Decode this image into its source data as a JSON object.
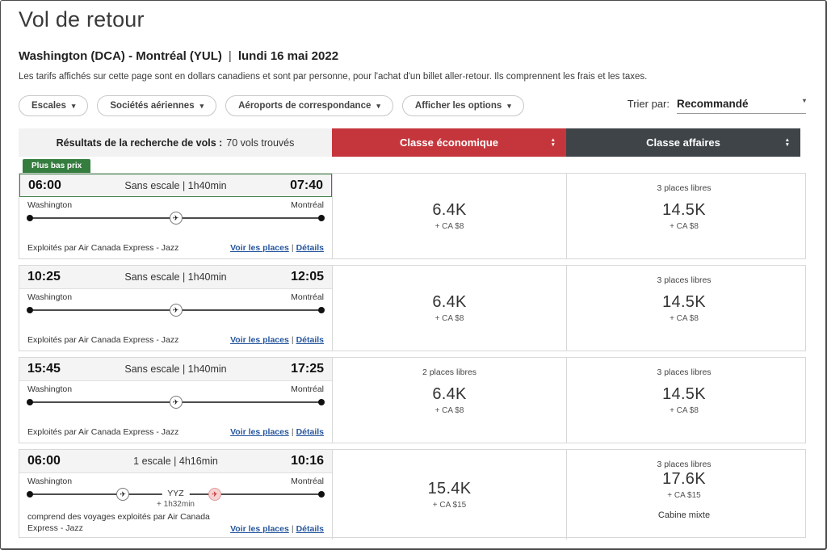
{
  "page": {
    "title": "Vol de retour",
    "route": "Washington (DCA) - Montréal (YUL)",
    "subtitle_divider": "|",
    "date": "lundi 16 mai 2022",
    "note": "Les tarifs affichés sur cette page sont en dollars canadiens et sont par personne, pour l'achat d'un billet aller-retour. Ils comprennent les frais et les taxes."
  },
  "filters": {
    "buttons": [
      {
        "label": "Escales"
      },
      {
        "label": "Sociétés aériennes"
      },
      {
        "label": "Aéroports de correspondance"
      },
      {
        "label": "Afficher les options"
      }
    ],
    "sort_label": "Trier par:",
    "sort_value": "Recommandé"
  },
  "results_header": {
    "results_label": "Résultats de la recherche de vols :",
    "results_count": "70 vols trouvés",
    "economy_label": "Classe économique",
    "business_label": "Classe affaires"
  },
  "badge": {
    "lowest_price": "Plus bas prix"
  },
  "flights": [
    {
      "departure_time": "06:00",
      "arrival_time": "07:40",
      "stops_duration": "Sans escale | 1h40min",
      "origin": "Washington",
      "destination": "Montréal",
      "operator": "Exploités par Air Canada Express - Jazz",
      "links": {
        "seats": "Voir les places",
        "divider": "|",
        "details": "Détails"
      },
      "economy": {
        "seats_left": "",
        "price": "6.4K",
        "note": "+ CA $8"
      },
      "business": {
        "seats_left": "3 places libres",
        "price": "14.5K",
        "note": "+ CA $8"
      }
    },
    {
      "departure_time": "10:25",
      "arrival_time": "12:05",
      "stops_duration": "Sans escale | 1h40min",
      "origin": "Washington",
      "destination": "Montréal",
      "operator": "Exploités par Air Canada Express - Jazz",
      "links": {
        "seats": "Voir les places",
        "divider": "|",
        "details": "Détails"
      },
      "economy": {
        "seats_left": "",
        "price": "6.4K",
        "note": "+ CA $8"
      },
      "business": {
        "seats_left": "3 places libres",
        "price": "14.5K",
        "note": "+ CA $8"
      }
    },
    {
      "departure_time": "15:45",
      "arrival_time": "17:25",
      "stops_duration": "Sans escale | 1h40min",
      "origin": "Washington",
      "destination": "Montréal",
      "operator": "Exploités par Air Canada Express - Jazz",
      "links": {
        "seats": "Voir les places",
        "divider": "|",
        "details": "Détails"
      },
      "economy": {
        "seats_left": "2 places libres",
        "price": "6.4K",
        "note": "+ CA $8"
      },
      "business": {
        "seats_left": "3 places libres",
        "price": "14.5K",
        "note": "+ CA $8"
      }
    },
    {
      "departure_time": "06:00",
      "arrival_time": "10:16",
      "stops_duration": "1 escale | 4h16min",
      "origin": "Washington",
      "destination": "Montréal",
      "connection": {
        "code": "YYZ",
        "layover": "+ 1h32min"
      },
      "operator": "comprend des voyages exploités par Air Canada Express - Jazz",
      "links": {
        "seats": "Voir les places",
        "divider": "|",
        "details": "Détails"
      },
      "economy": {
        "seats_left": "",
        "price": "15.4K",
        "note": "+ CA $15"
      },
      "business": {
        "seats_left": "3 places libres",
        "price": "17.6K",
        "note": "+ CA $15",
        "cabin": "Cabine mixte"
      }
    }
  ],
  "colors": {
    "economy_header": "#C5363C",
    "business_header": "#3F4448",
    "lowest_price_green": "#357D3F",
    "link_blue": "#26579E"
  }
}
